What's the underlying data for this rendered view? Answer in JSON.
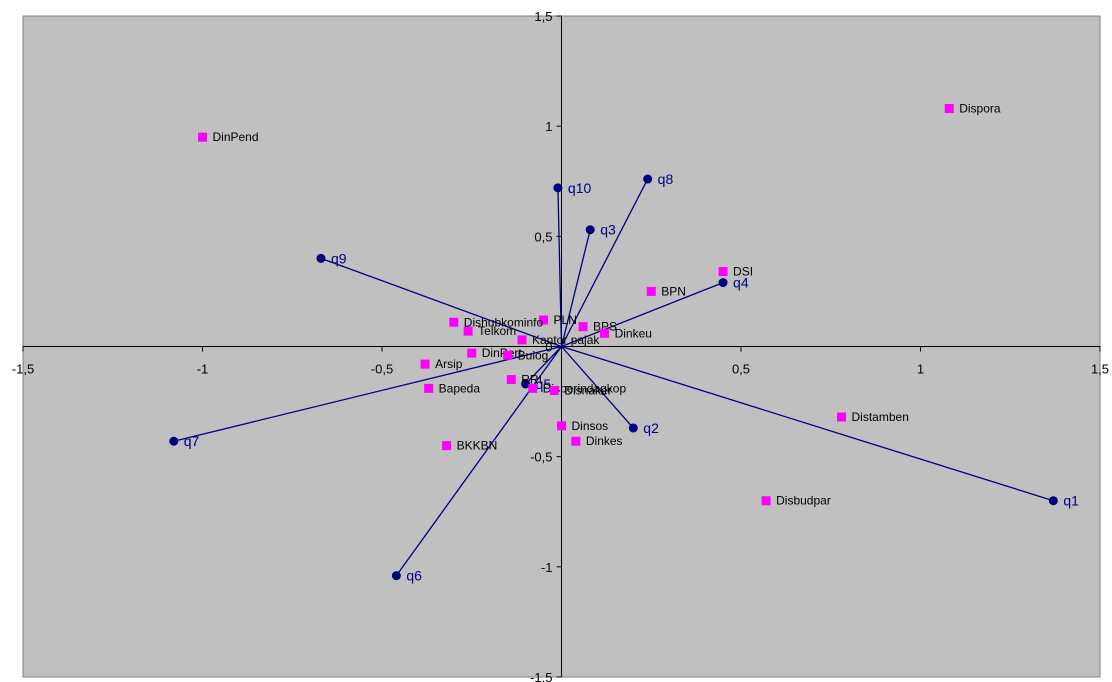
{
  "chart_data": {
    "type": "scatter",
    "xlim": [
      -1.5,
      1.5
    ],
    "ylim": [
      -1.5,
      1.5
    ],
    "x_ticks": [
      -1.5,
      -1,
      -0.5,
      0,
      0.5,
      1,
      1.5
    ],
    "y_ticks": [
      -1.5,
      -1,
      -0.5,
      0,
      0.5,
      1,
      1.5
    ],
    "x_tick_labels": [
      "-1,5",
      "-1",
      "-0,5",
      "0",
      "0,5",
      "1",
      "1,5"
    ],
    "y_tick_labels": [
      "-1,5",
      "-1",
      "-0,5",
      "0",
      "0,5",
      "1",
      "1,5"
    ],
    "grid": false,
    "plot_background": "#c0c0c0",
    "point_color": "#ff00ff",
    "vector_color": "#000080",
    "points": [
      {
        "label": "DinPend",
        "x": -1.0,
        "y": 0.95
      },
      {
        "label": "Dispora",
        "x": 1.08,
        "y": 1.08
      },
      {
        "label": "DSI",
        "x": 0.45,
        "y": 0.34
      },
      {
        "label": "BPN",
        "x": 0.25,
        "y": 0.25
      },
      {
        "label": "BPS",
        "x": 0.06,
        "y": 0.09
      },
      {
        "label": "Dinkeu",
        "x": 0.12,
        "y": 0.06
      },
      {
        "label": "PLN",
        "x": -0.05,
        "y": 0.12
      },
      {
        "label": "Dishubkominfo",
        "x": -0.3,
        "y": 0.11
      },
      {
        "label": "Telkom",
        "x": -0.26,
        "y": 0.07
      },
      {
        "label": "Kantor pajak",
        "x": -0.11,
        "y": 0.03
      },
      {
        "label": "DinPert",
        "x": -0.25,
        "y": -0.03
      },
      {
        "label": "Bulog",
        "x": -0.15,
        "y": -0.04
      },
      {
        "label": "Arsip",
        "x": -0.38,
        "y": -0.08
      },
      {
        "label": "Bapeda",
        "x": -0.37,
        "y": -0.19
      },
      {
        "label": "RRI",
        "x": -0.14,
        "y": -0.15
      },
      {
        "label": "Disperindagkop",
        "x": -0.08,
        "y": -0.19
      },
      {
        "label": "Disnaker",
        "x": -0.02,
        "y": -0.2
      },
      {
        "label": "Dinsos",
        "x": 0.0,
        "y": -0.36
      },
      {
        "label": "Dinkes",
        "x": 0.04,
        "y": -0.43
      },
      {
        "label": "BKKBN",
        "x": -0.32,
        "y": -0.45
      },
      {
        "label": "Distamben",
        "x": 0.78,
        "y": -0.32
      },
      {
        "label": "Disbudpar",
        "x": 0.57,
        "y": -0.7
      }
    ],
    "vectors": [
      {
        "label": "q1",
        "x": 1.37,
        "y": -0.7
      },
      {
        "label": "q2",
        "x": 0.2,
        "y": -0.37
      },
      {
        "label": "q3",
        "x": 0.08,
        "y": 0.53
      },
      {
        "label": "q4",
        "x": 0.45,
        "y": 0.29
      },
      {
        "label": "q5",
        "x": -0.1,
        "y": -0.17
      },
      {
        "label": "q6",
        "x": -0.46,
        "y": -1.04
      },
      {
        "label": "q7",
        "x": -1.08,
        "y": -0.43
      },
      {
        "label": "q8",
        "x": 0.24,
        "y": 0.76
      },
      {
        "label": "q9",
        "x": -0.67,
        "y": 0.4
      },
      {
        "label": "q10",
        "x": -0.01,
        "y": 0.72
      }
    ]
  }
}
